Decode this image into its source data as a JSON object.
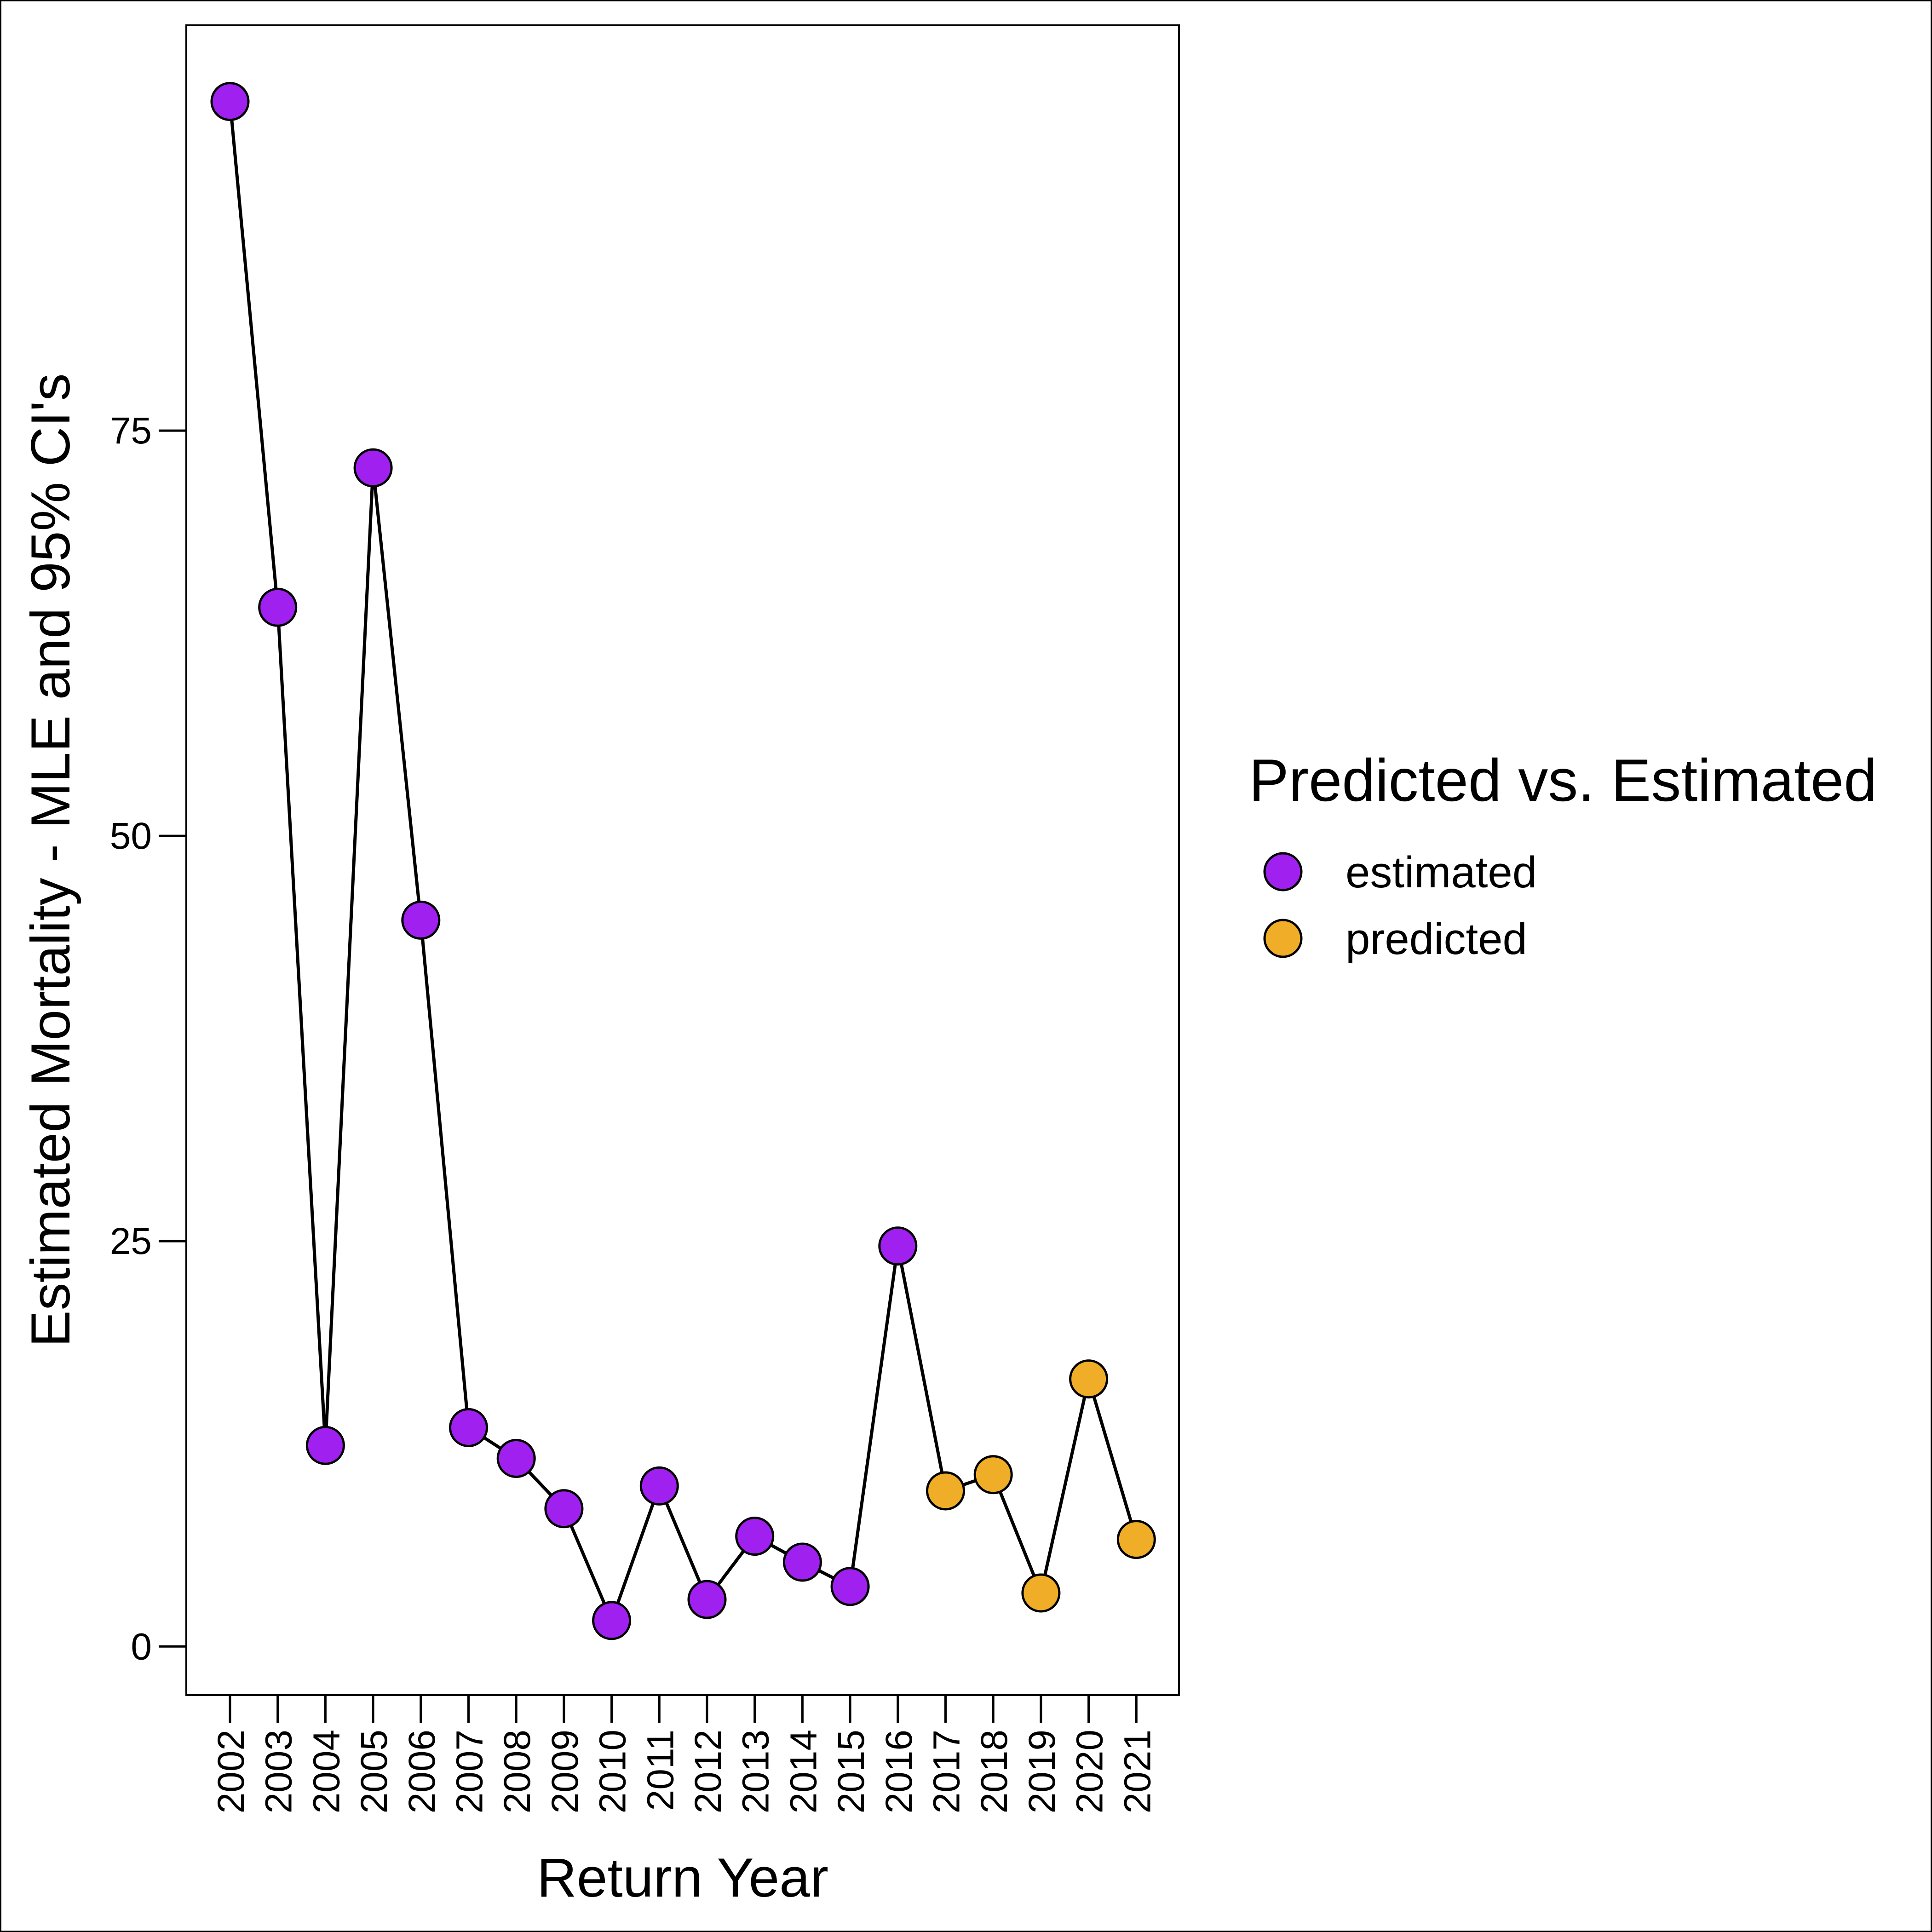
{
  "chart_data": {
    "type": "scatter",
    "title": "",
    "xlabel": "Return Year",
    "ylabel": "Estimated Mortality - MLE and 95% CI's",
    "x_tick_labels": [
      "2002",
      "2003",
      "2004",
      "2005",
      "2006",
      "2007",
      "2008",
      "2009",
      "2010",
      "2011",
      "2012",
      "2013",
      "2014",
      "2015",
      "2016",
      "2017",
      "2018",
      "2019",
      "2020",
      "2021"
    ],
    "y_ticks": [
      0,
      25,
      50,
      75
    ],
    "ylim": [
      -3,
      100
    ],
    "grid": false,
    "legend": {
      "title": "Predicted vs. Estimated",
      "position": "right",
      "entries": [
        {
          "label": "estimated",
          "color": "#A020F0"
        },
        {
          "label": "predicted",
          "color": "#F0AE28"
        }
      ]
    },
    "connected_by_line": true,
    "line_color": "#000000",
    "points": [
      {
        "x": "2002",
        "y": 95.3,
        "group": "estimated"
      },
      {
        "x": "2003",
        "y": 64.1,
        "group": "estimated"
      },
      {
        "x": "2004",
        "y": 12.4,
        "group": "estimated"
      },
      {
        "x": "2005",
        "y": 72.7,
        "group": "estimated"
      },
      {
        "x": "2006",
        "y": 44.8,
        "group": "estimated"
      },
      {
        "x": "2007",
        "y": 13.5,
        "group": "estimated"
      },
      {
        "x": "2008",
        "y": 11.6,
        "group": "estimated"
      },
      {
        "x": "2009",
        "y": 8.5,
        "group": "estimated"
      },
      {
        "x": "2010",
        "y": 1.6,
        "group": "estimated"
      },
      {
        "x": "2011",
        "y": 9.9,
        "group": "estimated"
      },
      {
        "x": "2012",
        "y": 2.9,
        "group": "estimated"
      },
      {
        "x": "2013",
        "y": 6.8,
        "group": "estimated"
      },
      {
        "x": "2014",
        "y": 5.2,
        "group": "estimated"
      },
      {
        "x": "2015",
        "y": 3.7,
        "group": "estimated"
      },
      {
        "x": "2016",
        "y": 24.7,
        "group": "estimated"
      },
      {
        "x": "2017",
        "y": 9.6,
        "group": "predicted"
      },
      {
        "x": "2018",
        "y": 10.6,
        "group": "predicted"
      },
      {
        "x": "2019",
        "y": 3.3,
        "group": "predicted"
      },
      {
        "x": "2020",
        "y": 16.5,
        "group": "predicted"
      },
      {
        "x": "2021",
        "y": 6.6,
        "group": "predicted"
      }
    ]
  }
}
